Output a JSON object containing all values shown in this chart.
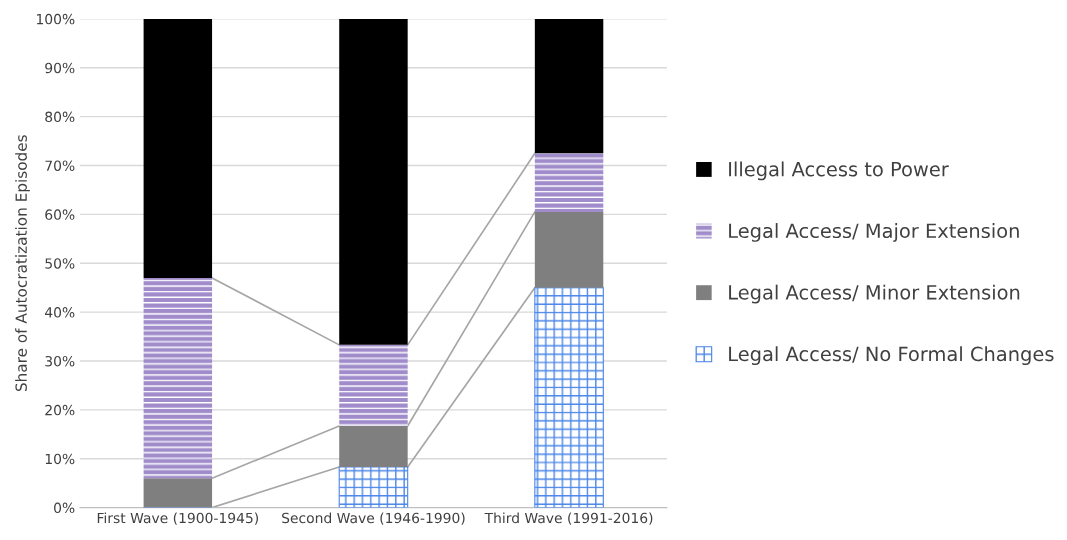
{
  "chart_data": {
    "type": "bar",
    "stacked": true,
    "ylabel": "Share of Autocratization Episodes",
    "categories": [
      "First Wave (1900-1945)",
      "Second Wave (1946-1990)",
      "Third Wave (1991-2016)"
    ],
    "series": [
      {
        "name": "Legal Access/ No Formal Changes",
        "color": "#4a86e8",
        "values": [
          0,
          8.3,
          45
        ]
      },
      {
        "name": "Legal Access/ Minor Extension",
        "color": "#7f7f7f",
        "values": [
          6,
          8.4,
          15.5
        ]
      },
      {
        "name": "Legal Access/ Major Extension",
        "color": "#a08ccb",
        "values": [
          41,
          16.6,
          12
        ]
      },
      {
        "name": "Illegal Access to Power",
        "color": "#000000",
        "values": [
          53,
          66.7,
          27.5
        ]
      }
    ],
    "ylim": [
      0,
      100
    ],
    "yticks": [
      {
        "value": 0,
        "label": "0%"
      },
      {
        "value": 10,
        "label": "10%"
      },
      {
        "value": 20,
        "label": "20%"
      },
      {
        "value": 30,
        "label": "30%"
      },
      {
        "value": 40,
        "label": "40%"
      },
      {
        "value": 50,
        "label": "50%"
      },
      {
        "value": 60,
        "label": "60%"
      },
      {
        "value": 70,
        "label": "70%"
      },
      {
        "value": 80,
        "label": "80%"
      },
      {
        "value": 90,
        "label": "90%"
      },
      {
        "value": 100,
        "label": "100%"
      }
    ],
    "grid": "y",
    "legend": "right"
  }
}
